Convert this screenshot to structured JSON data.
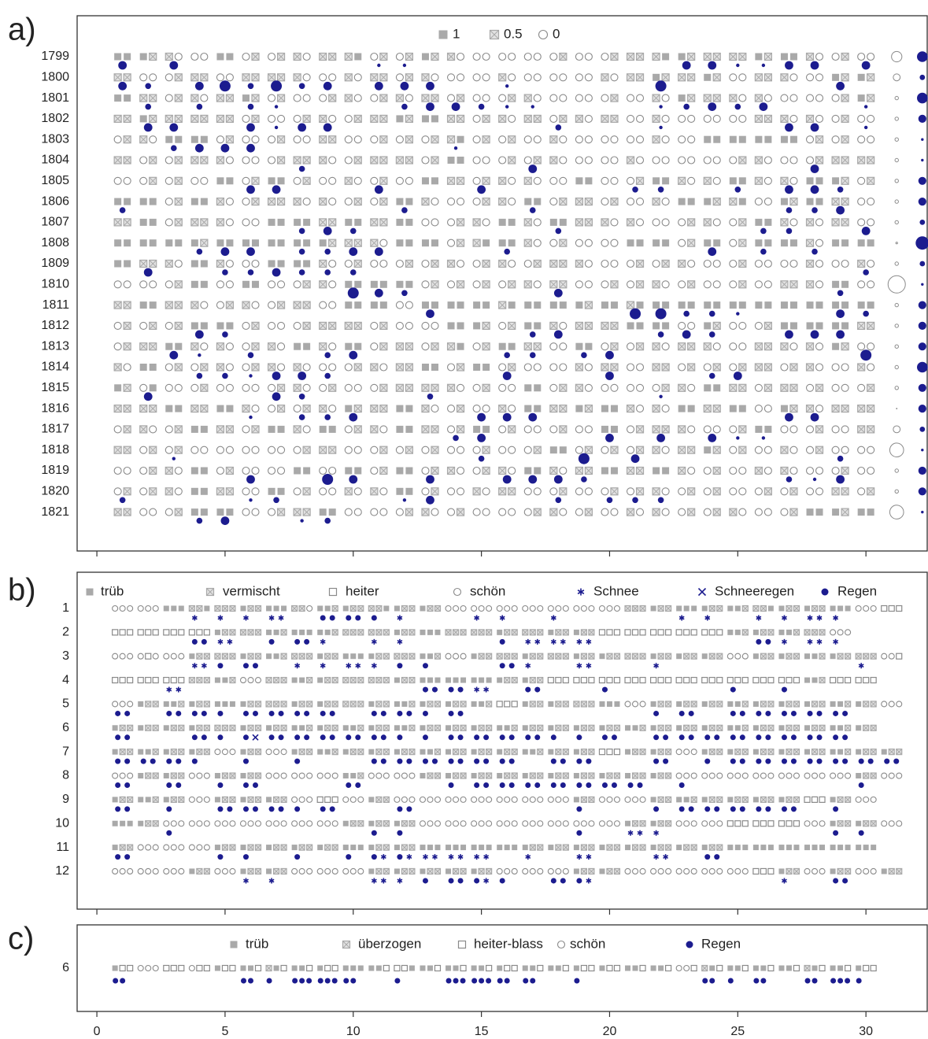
{
  "chart_data": {
    "type": "symbol-grid",
    "xlim": [
      -0.77,
      32.39
    ],
    "xticks": [
      0,
      5,
      10,
      15,
      20,
      25,
      30
    ],
    "panels": [
      {
        "label": "a)",
        "legend": [
          "1",
          "0.5",
          "0"
        ],
        "rows": [
          "1799",
          "1800",
          "1801",
          "1802",
          "1803",
          "1804",
          "1805",
          "1806",
          "1807",
          "1808",
          "1809",
          "1810",
          "1811",
          "1812",
          "1813",
          "1814",
          "1815",
          "1816",
          "1817",
          "1818",
          "1819",
          "1820",
          "1821"
        ],
        "sky": [
          "00 01 12 22 00 21 21 12 11 10 21 21 01 12 22 22 22 21 22 21 11 10 01 11 11 01 00 12 21 22",
          "11 22 21 11 22 11 11 12 22 12 11 21 12 22 22 12 22 22 22 12 11 01 11 01 22 11 12 22 01 01",
          "00 11 21 12 11 01 21 22 21 12 21 12 11 21 22 21 12 22 22 21 22 12 01 11 12 12 22 22 21 01",
          "11 01 11 11 11 21 22 21 12 21 11 01 00 11 21 12 11 21 12 11 22 12 22 22 22 11 12 12 21 22",
          "21 12 00 00 21 22 21 22 11 22 21 21 21 10 21 21 22 12 22 22 22 12 22 00 00 00 00 21 21 22",
          "11 21 21 11 12 22 21 11 12 21 11 11 21 00 22 21 21 12 22 22 12 22 22 22 21 12 22 21 11 11",
          "22 21 21 22 00 21 00 21 22 12 21 22 00 11 21 12 12 22 00 22 21 00 12 12 00 12 12 00 01 21",
          "00 00 21 00 12 21 11 12 12 21 21 00 12 22 21 12 00 21 11 21 22 12 00 01 10 22 01 00 11 22",
          "11 00 21 11 12 22 00 00 11 00 11 00 22 21 12 00 12 00 11 12 12 22 21 12 21 00 12 12 11 22",
          "00 00 00 01 00 00 00 00 01 11 12 00 00 21 10 00 12 21 22 22 00 00 21 00 21 00 00 12 00 00",
          "00 11 12 00 12 22 00 00 12 21 22 21 21 12 21 12 21 11 12 22 21 21 12 22 21 22 22 12 22 12",
          "22 22 21 00 22 00 22 21 12 00 00 00 21 21 21 21 12 11 22 21 21 12 21 22 21 22 11 12 00 22",
          "11 00 11 12 21 12 21 11 22 00 00 22 00 00 00 10 00 00 01 00 10 00 00 00 00 00 00 00 00 00",
          "21 21 21 00 00 21 22 21 11 11 21 22 22 00 01 21 00 12 11 11 00 00 22 01 22 21 00 00 00 11",
          "21 11 00 12 12 21 12 00 12 00 21 11 21 10 21 00 11 22 00 21 21 12 11 12 22 11 12 12 01 22",
          "12 00 21 21 12 21 12 12 22 21 12 11 00 21 00 21 22 22 12 11 22 11 21 21 21 11 21 12 22 12",
          "01 20 22 21 22 22 21 12 21 22 21 11 11 12 21 22 00 21 12 22 22 21 12 00 11 21 11 21 22 21",
          "11 11 00 11 00 12 21 21 12 01 11 00 12 21 22 12 00 11 01 00 12 12 00 11 00 22 01 12 11 11",
          "21 12 21 00 11 21 00 12 00 21 12 00 11 21 00 21 22 21 22 00 21 11 12 22 21 00 22 21 22 11",
          "11 21 21 22 22 22 22 21 11 22 21 21 21 22 21 22 21 00 21 21 21 12 11 01 21 22 12 21 22 22",
          "22 21 12 00 21 22 22 00 22 00 21 00 21 12 21 12 00 12 11 00 11 00 12 21 22 12 12 22 21 22",
          "21 21 12 00 11 22 00 21 22 12 12 00 21 22 12 11 22 21 22 21 21 12 21 21 22 21 21 22 11 21",
          "11 22 21 00 00 22 21 11 00 22 22 21 12 21 22 22 21 12 21 22 12 12 21 21 12 22 21 00 01 00"
        ],
        "rain": [
          [
            3,
            0,
            3,
            0,
            0,
            0,
            0,
            0,
            0,
            0,
            1,
            1,
            0,
            0,
            0,
            0,
            0,
            0,
            0,
            0,
            0,
            0,
            3,
            3,
            1,
            1,
            3,
            3,
            0,
            3
          ],
          [
            3,
            2,
            0,
            3,
            4,
            2,
            4,
            2,
            3,
            0,
            3,
            3,
            3,
            0,
            0,
            1,
            0,
            0,
            0,
            0,
            0,
            4,
            0,
            0,
            0,
            0,
            0,
            0,
            3,
            0
          ],
          [
            0,
            2,
            0,
            2,
            0,
            2,
            1,
            0,
            0,
            0,
            0,
            2,
            3,
            3,
            2,
            1,
            1,
            0,
            0,
            0,
            0,
            1,
            2,
            3,
            2,
            3,
            0,
            0,
            0,
            1
          ],
          [
            0,
            3,
            3,
            0,
            0,
            3,
            1,
            3,
            3,
            0,
            0,
            0,
            0,
            0,
            0,
            0,
            0,
            2,
            0,
            0,
            0,
            1,
            0,
            0,
            0,
            0,
            3,
            3,
            0,
            1
          ],
          [
            0,
            0,
            2,
            3,
            3,
            3,
            0,
            0,
            0,
            0,
            0,
            0,
            0,
            1,
            0,
            0,
            0,
            0,
            0,
            0,
            0,
            0,
            0,
            0,
            0,
            0,
            0,
            0,
            0,
            0
          ],
          [
            0,
            0,
            0,
            0,
            0,
            0,
            0,
            2,
            0,
            0,
            0,
            0,
            0,
            0,
            0,
            0,
            3,
            0,
            0,
            0,
            0,
            0,
            0,
            0,
            0,
            0,
            0,
            3,
            0,
            0
          ],
          [
            0,
            0,
            0,
            0,
            0,
            3,
            3,
            0,
            0,
            0,
            3,
            0,
            0,
            0,
            3,
            0,
            0,
            0,
            0,
            0,
            2,
            2,
            0,
            0,
            2,
            0,
            3,
            3,
            2,
            0
          ],
          [
            2,
            0,
            0,
            0,
            0,
            0,
            0,
            0,
            0,
            0,
            0,
            2,
            0,
            0,
            0,
            0,
            2,
            0,
            0,
            0,
            0,
            0,
            0,
            0,
            0,
            0,
            2,
            2,
            3,
            0
          ],
          [
            0,
            0,
            0,
            0,
            0,
            0,
            0,
            2,
            3,
            2,
            0,
            0,
            0,
            0,
            0,
            0,
            0,
            2,
            0,
            0,
            0,
            0,
            0,
            0,
            0,
            2,
            2,
            0,
            0,
            3
          ],
          [
            0,
            0,
            0,
            2,
            3,
            3,
            0,
            2,
            2,
            3,
            3,
            0,
            0,
            0,
            0,
            2,
            0,
            0,
            0,
            0,
            0,
            0,
            0,
            3,
            0,
            2,
            0,
            2,
            0,
            0
          ],
          [
            0,
            3,
            0,
            0,
            2,
            2,
            3,
            2,
            2,
            2,
            0,
            0,
            0,
            0,
            0,
            0,
            0,
            0,
            0,
            0,
            0,
            0,
            0,
            0,
            0,
            0,
            0,
            0,
            0,
            2
          ],
          [
            0,
            0,
            0,
            0,
            0,
            0,
            0,
            0,
            0,
            4,
            3,
            2,
            0,
            0,
            0,
            0,
            0,
            3,
            0,
            0,
            0,
            0,
            0,
            0,
            0,
            0,
            0,
            0,
            2,
            0
          ],
          [
            0,
            0,
            0,
            0,
            0,
            0,
            0,
            0,
            0,
            0,
            0,
            0,
            3,
            0,
            0,
            0,
            0,
            0,
            0,
            0,
            4,
            4,
            2,
            2,
            1,
            0,
            0,
            0,
            3,
            2
          ],
          [
            0,
            0,
            0,
            3,
            2,
            0,
            0,
            0,
            0,
            0,
            0,
            0,
            0,
            0,
            0,
            0,
            2,
            3,
            0,
            0,
            0,
            2,
            3,
            2,
            0,
            0,
            3,
            3,
            3,
            0
          ],
          [
            0,
            0,
            3,
            1,
            0,
            2,
            0,
            0,
            2,
            3,
            0,
            0,
            0,
            0,
            0,
            2,
            2,
            0,
            2,
            3,
            0,
            0,
            0,
            0,
            0,
            0,
            0,
            0,
            0,
            4
          ],
          [
            0,
            0,
            0,
            2,
            2,
            1,
            3,
            3,
            2,
            0,
            0,
            0,
            0,
            0,
            0,
            3,
            0,
            0,
            0,
            3,
            0,
            0,
            0,
            2,
            3,
            0,
            0,
            0,
            0,
            0
          ],
          [
            0,
            3,
            0,
            0,
            0,
            0,
            3,
            2,
            0,
            0,
            0,
            0,
            2,
            0,
            0,
            0,
            0,
            0,
            0,
            0,
            0,
            1,
            0,
            0,
            0,
            0,
            0,
            0,
            0,
            0
          ],
          [
            0,
            0,
            0,
            0,
            0,
            1,
            0,
            2,
            2,
            3,
            0,
            0,
            0,
            0,
            3,
            3,
            3,
            0,
            0,
            0,
            0,
            0,
            0,
            0,
            0,
            0,
            3,
            3,
            0,
            0
          ],
          [
            0,
            0,
            0,
            0,
            0,
            0,
            0,
            0,
            0,
            0,
            0,
            0,
            0,
            2,
            3,
            0,
            0,
            0,
            0,
            3,
            0,
            3,
            0,
            3,
            1,
            1,
            0,
            0,
            0,
            0
          ],
          [
            0,
            0,
            1,
            0,
            0,
            0,
            0,
            0,
            0,
            0,
            0,
            0,
            0,
            0,
            2,
            0,
            0,
            0,
            4,
            0,
            3,
            0,
            0,
            0,
            0,
            0,
            0,
            0,
            2,
            0
          ],
          [
            0,
            0,
            0,
            0,
            0,
            3,
            0,
            0,
            4,
            3,
            0,
            0,
            3,
            0,
            0,
            3,
            3,
            3,
            2,
            0,
            0,
            0,
            0,
            0,
            0,
            0,
            2,
            1,
            3,
            0
          ],
          [
            2,
            0,
            0,
            0,
            0,
            1,
            2,
            0,
            0,
            0,
            0,
            1,
            3,
            0,
            0,
            0,
            0,
            2,
            0,
            2,
            2,
            2,
            0,
            0,
            0,
            0,
            0,
            0,
            0,
            0
          ],
          [
            0,
            0,
            0,
            2,
            3,
            0,
            0,
            1,
            2,
            0,
            0,
            0,
            0,
            0,
            0,
            0,
            0,
            0,
            0,
            0,
            0,
            0,
            0,
            0,
            0,
            0,
            0,
            0,
            0,
            0
          ]
        ],
        "total_open": [
          3,
          2,
          1,
          1,
          1,
          1,
          1,
          1,
          1,
          0.5,
          1,
          5,
          1,
          1,
          1,
          1,
          1,
          0.2,
          2,
          4,
          1,
          1,
          4
        ],
        "total_filled": [
          4,
          2,
          4,
          3,
          1,
          1,
          3,
          3,
          2,
          5,
          2,
          1,
          3,
          3,
          3,
          4,
          3,
          3,
          2,
          1,
          3,
          3,
          1
        ]
      },
      {
        "label": "b)",
        "legend": [
          "trüb",
          "vermischt",
          "heiter",
          "schön",
          "Schnee",
          "Schneeregen",
          "Regen"
        ],
        "rows": [
          "1",
          "2",
          "3",
          "4",
          "5",
          "6",
          "7",
          "8",
          "9",
          "10",
          "11",
          "12"
        ],
        "sky": [
          "333 333 000 110 111 011 000 113 001 011 110 011 011 333 333 333 333 333 333 333 111 011 000 011 001 110 011 011 000 333 222",
          "222 222 222 222 011 111 001 000 001 111 111 011 000 111 111 011 111 011 011 222 222 222 222 222 001 011 001 111 333",
          "333 323 333 011 111 011 001 111 011 000 011 111 001 333 011 111 011 111 011 011 111 011 011 011 333 011 011 001 011 111 332",
          "222 222 222 111 001 333 111 001 011 111 111 011 000 000 000 011 011 222 222 222 222 222 222 222 222 222 222 001 222 222",
          "333 011 001 011 000 011 111 011 011 111 011 001 011 011 001 222 011 011 111 000 333 011 011 011 001 011 011 011 001 011 333",
          "011 011 011 011 111 011 011 001 011 001 011 001 011 011 011 001 011 011 011 011 001 011 011 011 001 011 011 011 001 011",
          "011 001 011 011 333 011 333 011 001 011 011 011 001 011 011 011 001 011 011 222 011 011 333 011 011 011 011 011 001 011 011",
          "333 011 011 333 011 011 333 333 333 001 333 333 011 011 011 011 011 011 011 011 011 011 333 333 333 333 333 333 333 011 333",
          "011 001 011 333 011 011 011 333 222 333 011 333 333 333 333 333 333 333 011 333 333 011 001 011 011 011 011 222 011 333",
          "000 011 333 333 333 333 333 333 333 011 011 011 333 333 333 333 333 333 333 333 011 011 333 333 222 222 222 333 011 011 333",
          "011 333 333 333 011 011 011 011 011 000 011 011 000 000 000 000 011 011 011 011 011 011 011 011 000 000 000 000 000 000",
          "333 333 333 011 333 011 011 333 333 333 011 011 011 011 011 333 333 333 011 011 333 333 333 333 333 222 011 333 011 333 011"
        ],
        "precip": [
          ".. .. .. 4. 4. 4. 44 .. 66 66 6. 4. .. .. 4. 4. .. 4. .. .. .. .. 4. 4. .. 4. 4. 44 4. .. ..",
          ".. .. .. 66 44 .. 6. 66 4. .. 4. 4. .. .. .. 6. 44 44 44 .. .. .. .. .. .. 66 4. 44 4.",
          ".. .. .. 44 6. 66 .. 4. 4. 44 4. 6. 6. .. .. 66 4. .. 44 .. .. 4. .. .. .. .. .. .. .. 4. ..",
          ".. .. 44 .. .. .. .. .. .. .. .. .. 66 66 44 .. 66 .. .. 6. .. .. .. .. 6. .. 6. .. .. ..",
          "66 .. 66 66 6. 66 66 66 66 .. 66 66 6. 66 .. .. .. .. .. .. .. 6. 66 .. 66 66 66 66 66 .. ..",
          "66 .. .. 66 6. 65 66 66 66 66 66 6. 6. 66 66 66 66 6. 6. 66 .. 66 66 66 66 66 66 66 66 ..",
          "66 66 66 6. .. 6. .. 6. .. .. 66 66 66 66 66 66 .. 66 66 .. .. 66 .. 6. 66 66 66 66 66 66 66",
          "66 .. 66 .. 6. 66 .. .. .. 66 .. .. .. 6. 66 66 66 66 66 66 66 .. 6. .. .. .. .. .. .. 6. ..",
          "66 .. 6. .. 66 66 66 6. 66 .. .. 66 .. .. .. .. .. .. 6. .. .. 6. 66 66 66 66 66 .. 6. ..",
          ".. .. 6. .. .. .. .. .. .. .. 6. 6. .. .. .. .. .. .. 6. .. 44 4. .. .. .. .. .. .. 6. 6. ..",
          "66 .. .. .. 6. 6. .. 6. .. 6. 64 64 44 44 44 .. 4. .. 44 .. .. 44 .. 66 .. .. .. .. .. ..",
          ".. .. .. .. .. 4. 4. .. .. .. 44 4. 6. 66 64 6. .. 66 64 .. .. .. .. .. .. .. 4. .. 66 .. .."
        ]
      },
      {
        "label": "c)",
        "legend": [
          "trüb",
          "überzogen",
          "heiter-blass",
          "schön",
          "Regen"
        ],
        "rows": [
          "6"
        ],
        "sky": [
          "022 333 222 322 022 002 102 002 022 000 002 220 002 002 002 022 002 002 022 022 002 002 332 102 002 002 002 102 002 022"
        ],
        "precip": [
          "44. ... ... ... ... 44. 4.. 444 444 44. ... 4.. ... 444 444 44. 44. ... 4.. ... ... ... ... 44. 4.. 44. ... 44. 444 4.."
        ]
      }
    ]
  }
}
